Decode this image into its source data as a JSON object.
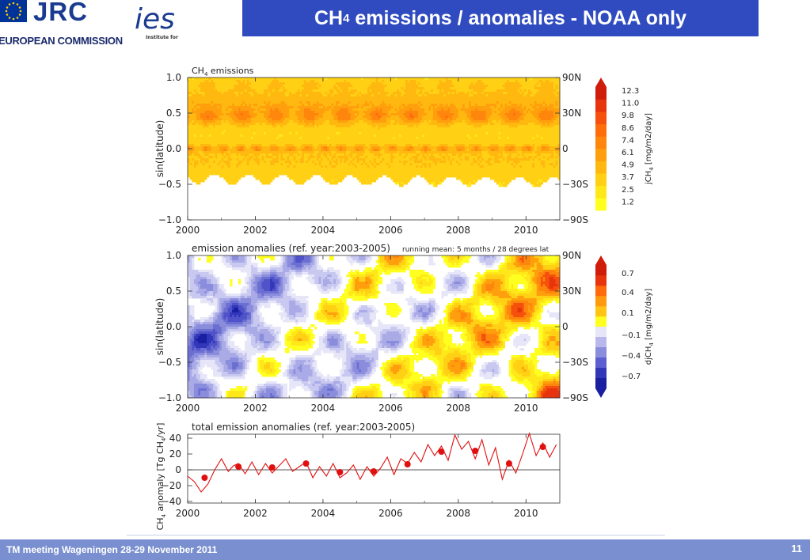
{
  "header": {
    "jrc": "JRC",
    "commission": "EUROPEAN COMMISSION",
    "ies_mark": "ies",
    "ies_caption": "Institute for",
    "title_pre": "CH",
    "title_sub": "4",
    "title_post": " emissions / anomalies - NOAA only"
  },
  "footer": {
    "meeting": "TM meeting Wageningen 28-29 November 2011",
    "page": "11"
  },
  "colors": {
    "title_bar": "#2f4bbf",
    "footer_bar": "#7a8fcf",
    "marker_red": "#e01010"
  },
  "chart_data": [
    {
      "type": "heatmap",
      "title": "CH4 emissions",
      "title_pre": "CH",
      "title_sub": "4",
      "title_post": "  emissions",
      "ylabel": "sin(latitude)",
      "xlim": [
        2000,
        2011
      ],
      "ylim": [
        -1.0,
        1.0
      ],
      "x_ticks": [
        "2000",
        "2002",
        "2004",
        "2006",
        "2008",
        "2010"
      ],
      "y_ticks": [
        "-1.0",
        "-0.5",
        "0.0",
        "0.5",
        "1.0"
      ],
      "right_ticks": [
        "90N",
        "30N",
        "0",
        "-30S",
        "-90S"
      ],
      "colorbar_label": "jCH4 [mg/m2/day]",
      "colorbar_label_parts": [
        "jCH",
        "4",
        " [mg/m2/day]"
      ],
      "colorbar_levels": [
        "12.3",
        "11.0",
        "9.8",
        "8.6",
        "7.4",
        "6.1",
        "4.9",
        "3.7",
        "2.5",
        "1.2"
      ]
    },
    {
      "type": "heatmap",
      "title": "emission anomalies (ref. year:2003-2005)",
      "note": "running mean:  5 months / 28 degrees lat",
      "ylabel": "sin(latitude)",
      "xlim": [
        2000,
        2011
      ],
      "ylim": [
        -1.0,
        1.0
      ],
      "x_ticks": [
        "2000",
        "2002",
        "2004",
        "2006",
        "2008",
        "2010"
      ],
      "y_ticks": [
        "-1.0",
        "-0.5",
        "0.0",
        "0.5",
        "1.0"
      ],
      "right_ticks": [
        "90N",
        "30N",
        "0",
        "-30S",
        "-90S"
      ],
      "colorbar_label": "djCH4 [mg/m2/day]",
      "colorbar_label_parts": [
        "djCH",
        "4",
        " [mg/m2/day]"
      ],
      "colorbar_levels": [
        "0.7",
        "0.4",
        "0.1",
        "-0.1",
        "-0.4",
        "-0.7"
      ]
    },
    {
      "type": "line",
      "title": "total emission anomalies (ref. year:2003-2005)",
      "ylabel": "CH4 anomaly [Tg CH4/yr]",
      "ylabel_parts": [
        "CH",
        "4",
        " anomaly [Tg CH",
        "4",
        "/yr]"
      ],
      "xlim": [
        2000,
        2011
      ],
      "ylim": [
        -42,
        45
      ],
      "x_ticks": [
        "2000",
        "2002",
        "2004",
        "2006",
        "2008",
        "2010"
      ],
      "y_ticks": [
        "-40",
        "-20",
        "0",
        "20",
        "40"
      ],
      "series": [
        {
          "x": [
            2000.0,
            2000.2,
            2000.4,
            2000.6,
            2000.8,
            2001.0,
            2001.2,
            2001.35,
            2001.5,
            2001.7,
            2001.9,
            2002.1,
            2002.3,
            2002.5,
            2002.7,
            2002.9,
            2003.1,
            2003.3,
            2003.5,
            2003.7,
            2003.9,
            2004.1,
            2004.3,
            2004.5,
            2004.7,
            2004.9,
            2005.1,
            2005.3,
            2005.5,
            2005.7,
            2005.9,
            2006.1,
            2006.3,
            2006.5,
            2006.7,
            2006.9,
            2007.1,
            2007.3,
            2007.5,
            2007.7,
            2007.9,
            2008.1,
            2008.3,
            2008.5,
            2008.7,
            2008.9,
            2009.1,
            2009.3,
            2009.5,
            2009.7,
            2009.9,
            2010.1,
            2010.3,
            2010.5,
            2010.7,
            2010.9
          ],
          "y": [
            -8,
            -15,
            -28,
            -18,
            0,
            14,
            -2,
            5,
            8,
            -5,
            10,
            -6,
            8,
            -4,
            5,
            14,
            -2,
            4,
            10,
            -10,
            4,
            -8,
            8,
            -10,
            -4,
            6,
            -12,
            4,
            -8,
            2,
            16,
            -6,
            14,
            8,
            22,
            10,
            32,
            18,
            30,
            12,
            44,
            26,
            36,
            14,
            38,
            6,
            28,
            -12,
            12,
            -4,
            20,
            46,
            18,
            34,
            16,
            32
          ]
        }
      ],
      "annual_means": {
        "x": [
          2000.5,
          2001.5,
          2002.5,
          2003.5,
          2004.5,
          2005.5,
          2006.5,
          2007.5,
          2008.5,
          2009.5,
          2010.5
        ],
        "y": [
          -10,
          4,
          3,
          8,
          -3,
          -2,
          7,
          23,
          24,
          8,
          29
        ]
      }
    }
  ]
}
